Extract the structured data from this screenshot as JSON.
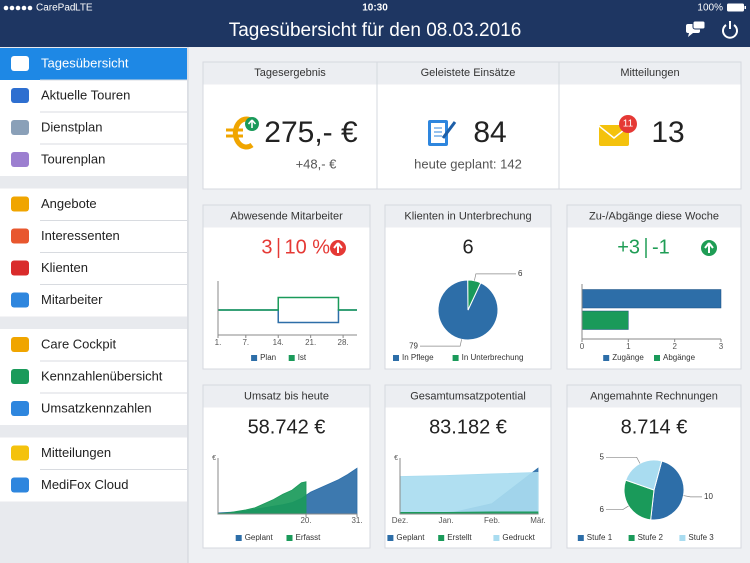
{
  "status_bar": {
    "carrier": "CarePad",
    "network": "LTE",
    "time": "10:30",
    "battery": "100%"
  },
  "header": {
    "title": "Tagesübersicht für den 08.03.2016"
  },
  "sidebar": {
    "groups": [
      {
        "items": [
          {
            "label": "Tagesübersicht",
            "active": true
          },
          {
            "label": "Aktuelle Touren"
          },
          {
            "label": "Dienstplan"
          },
          {
            "label": "Tourenplan"
          }
        ]
      },
      {
        "items": [
          {
            "label": "Angebote"
          },
          {
            "label": "Interessenten"
          },
          {
            "label": "Klienten"
          },
          {
            "label": "Mitarbeiter"
          }
        ]
      },
      {
        "items": [
          {
            "label": "Care Cockpit"
          },
          {
            "label": "Kennzahlenübersicht"
          },
          {
            "label": "Umsatzkennzahlen"
          }
        ]
      },
      {
        "items": [
          {
            "label": "Mitteilungen"
          },
          {
            "label": "MediFox Cloud"
          }
        ]
      }
    ]
  },
  "summary": [
    {
      "title": "Tagesergebnis",
      "value": "275,- €",
      "note": "+48,- €"
    },
    {
      "title": "Geleistete Einsätze",
      "value": 84,
      "note": "heute geplant: 142"
    },
    {
      "title": "Mitteilungen",
      "badge": 11,
      "value": 13
    }
  ],
  "widgets": [
    {
      "title": "Abwesende Mitarbeiter",
      "headline": {
        "left": 3,
        "right": "10 %",
        "color": "#e53935",
        "trend": "up"
      },
      "chart_data": {
        "type": "step",
        "xlim": [
          1,
          31
        ],
        "ylim": [
          0,
          4
        ],
        "xticks": [
          {
            "value": 1,
            "label": "1."
          },
          {
            "value": 7,
            "label": "7."
          },
          {
            "value": 14,
            "label": "14."
          },
          {
            "value": 21,
            "label": "21."
          },
          {
            "value": 28,
            "label": "28."
          }
        ],
        "series": [
          {
            "name": "Plan",
            "color": "#2d6ea8",
            "x": [
              1,
              14,
              14,
              27,
              27,
              31
            ],
            "values": [
              2,
              2,
              1,
              1,
              2,
              2
            ]
          },
          {
            "name": "Ist",
            "color": "#1a9a5a",
            "x": [
              1,
              14,
              14,
              27,
              27,
              31
            ],
            "values": [
              2,
              2,
              3,
              3,
              2,
              2
            ]
          }
        ]
      }
    },
    {
      "title": "Klienten in Unterbrechung",
      "headline": {
        "value": 6
      },
      "chart_data": {
        "type": "pie",
        "categories": [
          "In Pflege",
          "In Unterbrechung"
        ],
        "values": [
          79,
          6
        ],
        "colors": [
          "#2d6ea8",
          "#1a9a5a"
        ]
      }
    },
    {
      "title": "Zu-/Abgänge diese Woche",
      "headline": {
        "left": "+3",
        "right": "-1",
        "color": "#1f9d55",
        "trend": "up"
      },
      "chart_data": {
        "type": "hbar",
        "categories": [
          "Zugänge",
          "Abgänge"
        ],
        "values": [
          3,
          1
        ],
        "colors": [
          "#2d6ea8",
          "#1a9a5a"
        ],
        "xlim": [
          0,
          3
        ],
        "xticks": [
          0,
          1,
          2,
          3
        ]
      }
    },
    {
      "title": "Umsatz bis heute",
      "headline": {
        "value": "58.742 €"
      },
      "chart_data": {
        "type": "area",
        "y_label": "€",
        "xlim": [
          1,
          31
        ],
        "ylim": [
          0,
          100
        ],
        "xticks": [
          {
            "value": 20,
            "label": "20."
          },
          {
            "value": 31,
            "label": "31."
          }
        ],
        "series": [
          {
            "name": "Geplant",
            "color": "#2d6ea8",
            "x": [
              1,
              3,
              5,
              7,
              9,
              11,
              13,
              15,
              17,
              19,
              21,
              23,
              25,
              27,
              29,
              31
            ],
            "values": [
              2,
              3,
              4,
              6,
              9,
              12,
              15,
              18,
              22,
              30,
              42,
              50,
              58,
              66,
              76,
              88
            ]
          },
          {
            "name": "Erfasst",
            "color": "#1a9a5a",
            "x": [
              1,
              3,
              5,
              7,
              9,
              11,
              13,
              15,
              17,
              19,
              20
            ],
            "values": [
              1,
              2,
              5,
              8,
              12,
              20,
              28,
              38,
              46,
              60,
              62
            ]
          }
        ]
      }
    },
    {
      "title": "Gesamtumsatzpotential",
      "headline": {
        "value": "83.182 €"
      },
      "chart_data": {
        "type": "area",
        "y_label": "€",
        "categories": [
          "Dez.",
          "Jan.",
          "Feb.",
          "Mär."
        ],
        "ylim": [
          0,
          100
        ],
        "series": [
          {
            "name": "Geplant",
            "color": "#2d6ea8",
            "values": [
              null,
              0,
              20,
              88
            ]
          },
          {
            "name": "Erstellt",
            "color": "#1a9a5a",
            "values": [
              3,
              3,
              4,
              4
            ]
          },
          {
            "name": "Gedruckt",
            "color": "#a9dcf0",
            "values": [
              72,
              74,
              77,
              80
            ]
          }
        ]
      }
    },
    {
      "title": "Angemahnte Rechnungen",
      "headline": {
        "value": "8.714 €"
      },
      "chart_data": {
        "type": "pie",
        "categories": [
          "Stufe 1",
          "Stufe 2",
          "Stufe 3"
        ],
        "values": [
          10,
          6,
          5
        ],
        "colors": [
          "#2d6ea8",
          "#1a9a5a",
          "#a9dcf0"
        ]
      }
    }
  ]
}
